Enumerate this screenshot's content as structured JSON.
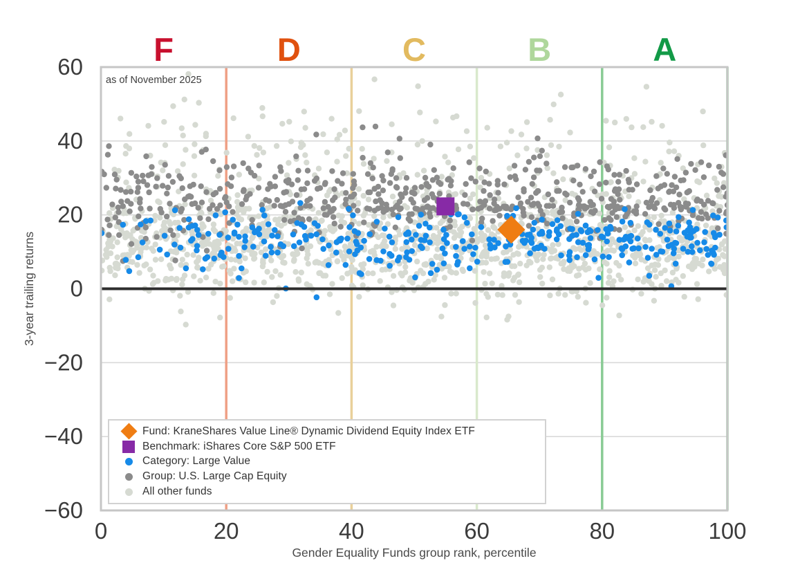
{
  "figure": {
    "annotation": "as of November 2025",
    "background": "#ffffff",
    "spine_color": "#c6c6c6",
    "grid_color": "#d9d9d9",
    "tick_color": "#3c3c3c",
    "axis_label_color": "#4a4a4a"
  },
  "grades": {
    "letters": [
      {
        "label": "F",
        "x": 10,
        "color": "#c8102e"
      },
      {
        "label": "D",
        "x": 30,
        "color": "#e0510f"
      },
      {
        "label": "C",
        "x": 50,
        "color": "#e2ba5f"
      },
      {
        "label": "B",
        "x": 70,
        "color": "#afd79c"
      },
      {
        "label": "A",
        "x": 90,
        "color": "#129a47"
      }
    ],
    "boundaries": [
      {
        "x": 20,
        "color": "#efa085"
      },
      {
        "x": 40,
        "color": "#e9d09a"
      },
      {
        "x": 60,
        "color": "#d9e9cc"
      },
      {
        "x": 80,
        "color": "#89cb94"
      },
      {
        "x": 100,
        "color": "#89cb94"
      }
    ]
  },
  "chart_data": {
    "type": "scatter",
    "title": "",
    "xlabel": "Gender Equality Funds group rank, percentile",
    "ylabel": "3-year trailing returns",
    "xlim": [
      0,
      100
    ],
    "ylim": [
      -60,
      60
    ],
    "xticks": [
      0,
      20,
      40,
      60,
      80,
      100
    ],
    "yticks": [
      -60,
      -40,
      -20,
      0,
      20,
      40,
      60
    ],
    "grid": "horizontal",
    "zero_line": {
      "y": 0,
      "color": "#2d2d2d",
      "width": 4
    },
    "key_points": [
      {
        "name": "fund",
        "label": "Fund: KraneShares Value Line® Dynamic Dividend Equity Index ETF",
        "marker": "diamond",
        "color": "#ef7d13",
        "x": 65.5,
        "y": 16,
        "size": 36
      },
      {
        "name": "benchmark",
        "label": "Benchmark: iShares Core S&P 500 ETF",
        "marker": "square",
        "color": "#872aa6",
        "x": 55,
        "y": 22.3,
        "size": 26
      }
    ],
    "point_clouds": [
      {
        "name": "All other funds",
        "color": "#d6dad2",
        "radius": 4.2,
        "count": 1450,
        "seed": 20250711,
        "x": {
          "type": "uniform",
          "min": 0,
          "max": 100,
          "exp": 1
        },
        "y": {
          "min": -14,
          "max": 59,
          "components": [
            {
              "w": 0.8,
              "mean": 12,
              "sd": 6.5
            },
            {
              "w": 0.2,
              "mean": 30,
              "sd": 13
            }
          ]
        }
      },
      {
        "name": "Group: U.S. Large Cap Equity",
        "color": "#8b8b8b",
        "radius": 4.2,
        "count": 520,
        "seed": 987431,
        "x": {
          "type": "uniform",
          "min": 0,
          "max": 100,
          "exp": 1
        },
        "y": {
          "min": 3,
          "max": 46,
          "components": [
            {
              "w": 1,
              "mean": 25,
              "sd": 6
            }
          ]
        }
      },
      {
        "name": "Group index-hugger streak",
        "color": "#8b8b8b",
        "radius": 4.2,
        "count": 95,
        "seed": 55211,
        "x": {
          "type": "uniform",
          "min": 27,
          "max": 96,
          "exp": 1
        },
        "y": {
          "min": 20.3,
          "max": 23.8,
          "components": [
            {
              "w": 1,
              "mean": 22,
              "sd": 0.6
            }
          ]
        }
      },
      {
        "name": "Category: Large Value",
        "color": "#168ae8",
        "radius": 4.3,
        "count": 345,
        "seed": 771234,
        "x": {
          "type": "power",
          "min": 0,
          "max": 100,
          "exp": 0.72
        },
        "y": {
          "min": -9,
          "max": 28,
          "components": [
            {
              "w": 0.97,
              "mean": 13,
              "sd": 3.6
            },
            {
              "w": 0.03,
              "mean": 4,
              "sd": 6
            }
          ]
        }
      }
    ],
    "legend": {
      "position": "lower left",
      "items": [
        {
          "label": "Fund: KraneShares Value Line® Dynamic Dividend Equity Index ETF",
          "marker": "diamond",
          "color": "#ef7d13"
        },
        {
          "label": "Benchmark: iShares Core S&P 500 ETF",
          "marker": "square",
          "color": "#872aa6"
        },
        {
          "label": "Category: Large Value",
          "marker": "dot",
          "color": "#168ae8"
        },
        {
          "label": "Group: U.S. Large Cap Equity",
          "marker": "dot",
          "color": "#8b8b8b"
        },
        {
          "label": "All other funds",
          "marker": "dot",
          "color": "#d6dad2"
        }
      ]
    }
  }
}
